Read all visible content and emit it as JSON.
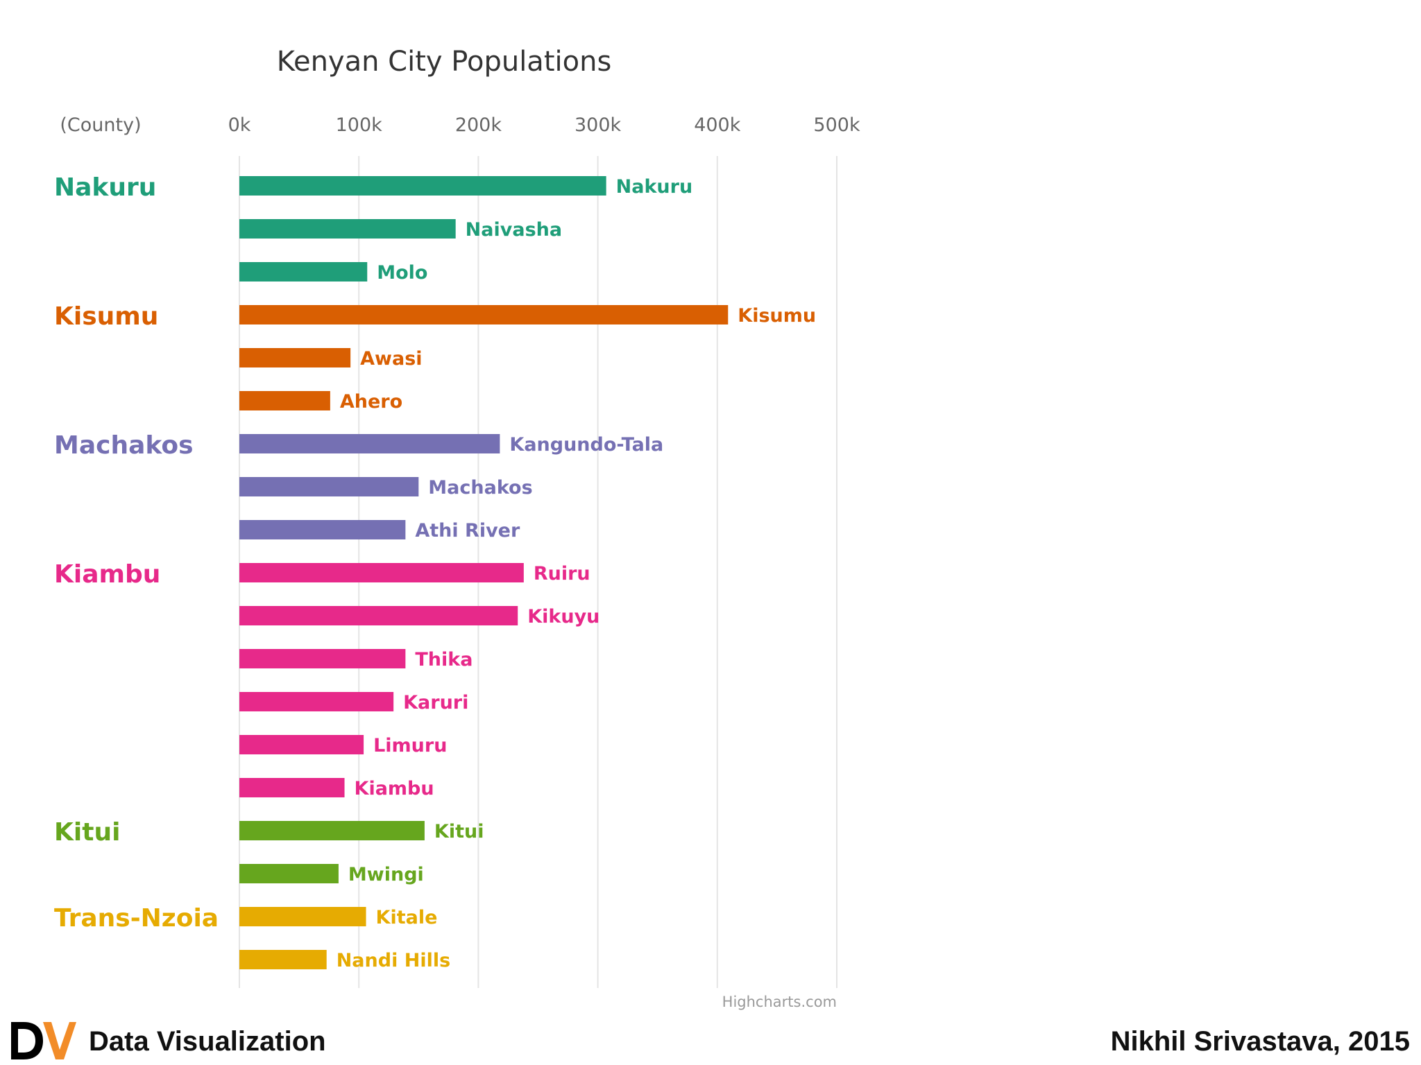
{
  "chart_data": {
    "type": "bar",
    "orientation": "horizontal",
    "title": "Kenyan City Populations",
    "group_axis_label": "(County)",
    "xlim": [
      0,
      500000
    ],
    "x_ticks": [
      0,
      100000,
      200000,
      300000,
      400000,
      500000
    ],
    "x_tick_labels": [
      "0k",
      "100k",
      "200k",
      "300k",
      "400k",
      "500k"
    ],
    "grid": true,
    "credit": "Highcharts.com",
    "groups": [
      {
        "name": "Nakuru",
        "color": "#1f9e79",
        "cities": [
          {
            "name": "Nakuru",
            "value": 307000
          },
          {
            "name": "Naivasha",
            "value": 181000
          },
          {
            "name": "Molo",
            "value": 107000
          }
        ]
      },
      {
        "name": "Kisumu",
        "color": "#d95f02",
        "cities": [
          {
            "name": "Kisumu",
            "value": 409000
          },
          {
            "name": "Awasi",
            "value": 93000
          },
          {
            "name": "Ahero",
            "value": 76000
          }
        ]
      },
      {
        "name": "Machakos",
        "color": "#7570b3",
        "cities": [
          {
            "name": "Kangundo-Tala",
            "value": 218000
          },
          {
            "name": "Machakos",
            "value": 150000
          },
          {
            "name": "Athi River",
            "value": 139000
          }
        ]
      },
      {
        "name": "Kiambu",
        "color": "#e7298a",
        "cities": [
          {
            "name": "Ruiru",
            "value": 238000
          },
          {
            "name": "Kikuyu",
            "value": 233000
          },
          {
            "name": "Thika",
            "value": 139000
          },
          {
            "name": "Karuri",
            "value": 129000
          },
          {
            "name": "Limuru",
            "value": 104000
          },
          {
            "name": "Kiambu",
            "value": 88000
          }
        ]
      },
      {
        "name": "Kitui",
        "color": "#66a61e",
        "cities": [
          {
            "name": "Kitui",
            "value": 155000
          },
          {
            "name": "Mwingi",
            "value": 83000
          }
        ]
      },
      {
        "name": "Trans-Nzoia",
        "color": "#e6ab02",
        "cities": [
          {
            "name": "Kitale",
            "value": 106000
          },
          {
            "name": "Nandi Hills",
            "value": 73000
          }
        ]
      }
    ]
  },
  "footer": {
    "logo_letters": "DV",
    "title": "Data Visualization",
    "author": "Nikhil Srivastava, 2015",
    "logo_colors": {
      "d": "#000000",
      "v": "#f28c28"
    }
  }
}
